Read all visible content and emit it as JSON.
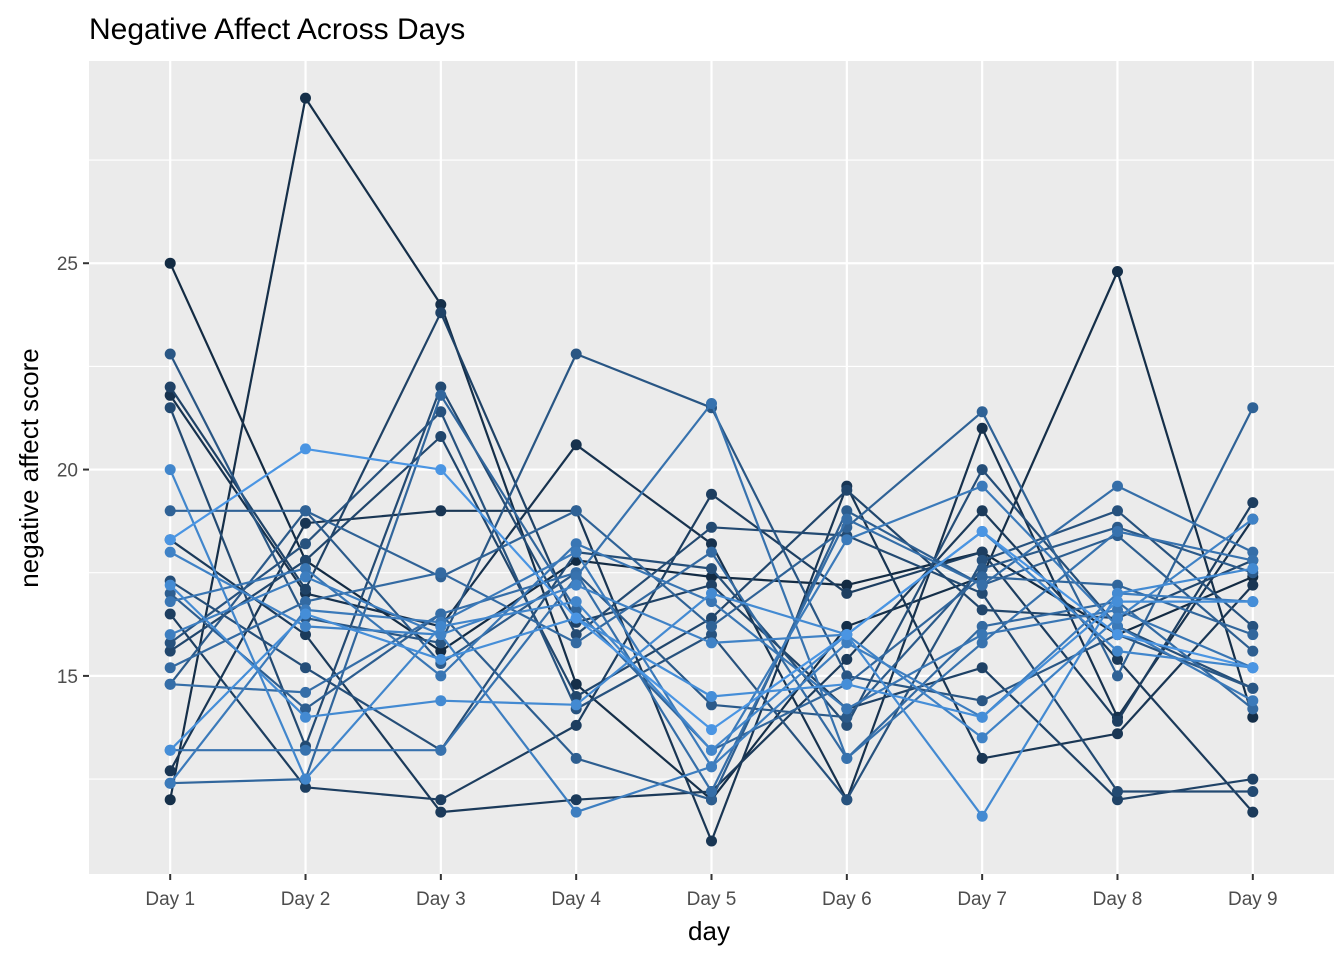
{
  "chart_data": {
    "type": "line",
    "title": "Negative Affect Across Days",
    "xlabel": "day",
    "ylabel": "negative affect score",
    "categories": [
      "Day 1",
      "Day 2",
      "Day 3",
      "Day 4",
      "Day 5",
      "Day 6",
      "Day 7",
      "Day 8",
      "Day 9"
    ],
    "y_ticks": [
      15,
      20,
      25
    ],
    "ylim": [
      10.2,
      29.9
    ],
    "grid": true,
    "legend": "none",
    "series": [
      {
        "values": [
          25.0,
          17.8,
          15.6,
          17.8,
          17.4,
          17.2,
          18.0,
          16.0,
          17.4
        ],
        "color": "#132b43"
      },
      {
        "values": [
          12.0,
          29.0,
          24.0,
          14.8,
          12.0,
          16.2,
          17.4,
          24.8,
          14.0
        ],
        "color": "#152f49"
      },
      {
        "values": [
          21.8,
          17.0,
          16.2,
          20.6,
          18.2,
          12.0,
          21.0,
          14.0,
          18.8
        ],
        "color": "#17324e"
      },
      {
        "values": [
          12.7,
          18.7,
          19.0,
          19.0,
          11.0,
          19.6,
          13.0,
          13.6,
          17.2
        ],
        "color": "#193654"
      },
      {
        "values": [
          18.3,
          16.0,
          11.7,
          12.0,
          12.2,
          15.4,
          19.0,
          15.4,
          11.7
        ],
        "color": "#1b3a5a"
      },
      {
        "values": [
          16.5,
          12.3,
          12.0,
          13.8,
          19.4,
          17.0,
          18.0,
          13.9,
          19.2
        ],
        "color": "#1d3e60"
      },
      {
        "values": [
          22.0,
          17.1,
          23.8,
          16.3,
          17.2,
          14.2,
          15.2,
          12.0,
          12.5
        ],
        "color": "#1f4266"
      },
      {
        "values": [
          15.6,
          17.8,
          20.8,
          14.5,
          16.4,
          19.5,
          16.6,
          16.4,
          17.8
        ],
        "color": "#21466c"
      },
      {
        "values": [
          21.5,
          13.3,
          22.0,
          16.0,
          18.6,
          18.4,
          17.0,
          12.2,
          12.2
        ],
        "color": "#234a72"
      },
      {
        "values": [
          17.3,
          15.2,
          13.2,
          18.0,
          17.6,
          13.8,
          20.0,
          16.2,
          14.7
        ],
        "color": "#254e78"
      },
      {
        "values": [
          15.8,
          18.2,
          21.4,
          14.2,
          16.0,
          12.0,
          17.8,
          19.0,
          16.2
        ],
        "color": "#27527e"
      },
      {
        "values": [
          22.8,
          16.4,
          15.8,
          22.8,
          21.5,
          15.0,
          14.4,
          16.0,
          14.7
        ],
        "color": "#295684"
      },
      {
        "values": [
          14.8,
          19.0,
          15.3,
          17.5,
          14.3,
          14.0,
          17.6,
          18.6,
          17.5
        ],
        "color": "#2b5a8a"
      },
      {
        "values": [
          17.0,
          14.2,
          16.5,
          13.0,
          12.0,
          19.0,
          17.2,
          18.4,
          15.6
        ],
        "color": "#2d5e90"
      },
      {
        "values": [
          19.0,
          19.0,
          17.4,
          19.0,
          16.2,
          18.6,
          21.4,
          15.0,
          21.5
        ],
        "color": "#2f6296"
      },
      {
        "values": [
          12.4,
          12.5,
          21.8,
          16.6,
          13.2,
          14.8,
          17.4,
          17.2,
          16.0
        ],
        "color": "#31669c"
      },
      {
        "values": [
          15.2,
          16.8,
          17.5,
          15.8,
          18.0,
          13.0,
          16.2,
          16.8,
          14.2
        ],
        "color": "#336aa2"
      },
      {
        "values": [
          14.8,
          14.6,
          16.5,
          17.5,
          12.2,
          18.8,
          17.2,
          19.6,
          18.0
        ],
        "color": "#356ea8"
      },
      {
        "values": [
          13.2,
          13.2,
          13.2,
          17.4,
          21.6,
          13.0,
          15.8,
          18.5,
          17.8
        ],
        "color": "#3772ae"
      },
      {
        "values": [
          16.8,
          17.6,
          15.0,
          18.2,
          16.8,
          14.2,
          16.0,
          16.6,
          15.2
        ],
        "color": "#3976b4"
      },
      {
        "values": [
          12.4,
          16.6,
          16.3,
          18.0,
          12.8,
          18.3,
          19.6,
          16.2,
          14.4
        ],
        "color": "#3b7aba"
      },
      {
        "values": [
          16.0,
          17.4,
          16.0,
          11.7,
          12.8,
          15.8,
          14.0,
          17.0,
          16.8
        ],
        "color": "#3d7ec0"
      },
      {
        "values": [
          18.0,
          16.2,
          16.0,
          17.2,
          15.8,
          16.0,
          13.5,
          16.4,
          18.8
        ],
        "color": "#3f82c6"
      },
      {
        "values": [
          20.0,
          12.5,
          16.2,
          16.8,
          13.2,
          16.0,
          18.5,
          15.6,
          15.2
        ],
        "color": "#4186cc"
      },
      {
        "values": [
          17.2,
          14.0,
          14.4,
          14.3,
          17.0,
          16.0,
          11.6,
          17.0,
          17.6
        ],
        "color": "#438ad2"
      },
      {
        "values": [
          13.2,
          16.5,
          15.4,
          16.4,
          14.5,
          14.8,
          14.0,
          16.8,
          16.8
        ],
        "color": "#458ed8"
      },
      {
        "values": [
          18.3,
          20.5,
          20.0,
          16.4,
          13.7,
          16.0,
          18.5,
          16.0,
          15.2
        ],
        "color": "#4a95e3"
      }
    ]
  }
}
